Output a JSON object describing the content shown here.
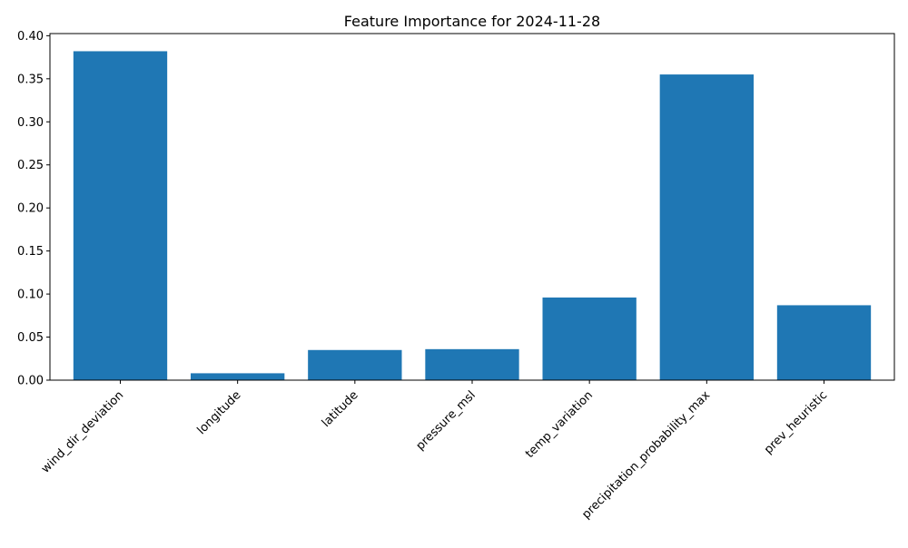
{
  "chart_data": {
    "type": "bar",
    "title": "Feature Importance for 2024-11-28",
    "xlabel": "",
    "ylabel": "",
    "categories": [
      "wind_dir_deviation",
      "longitude",
      "latitude",
      "pressure_msl",
      "temp_variation",
      "precipitation_probability_max",
      "prev_heuristic"
    ],
    "values": [
      0.382,
      0.008,
      0.035,
      0.036,
      0.096,
      0.355,
      0.087
    ],
    "ylim": [
      0,
      0.4025
    ],
    "yticks": [
      "0.00",
      "0.05",
      "0.10",
      "0.15",
      "0.20",
      "0.25",
      "0.30",
      "0.35",
      "0.40"
    ],
    "bar_color": "#1f77b4",
    "grid": false,
    "xtick_rotation_deg": 45
  }
}
